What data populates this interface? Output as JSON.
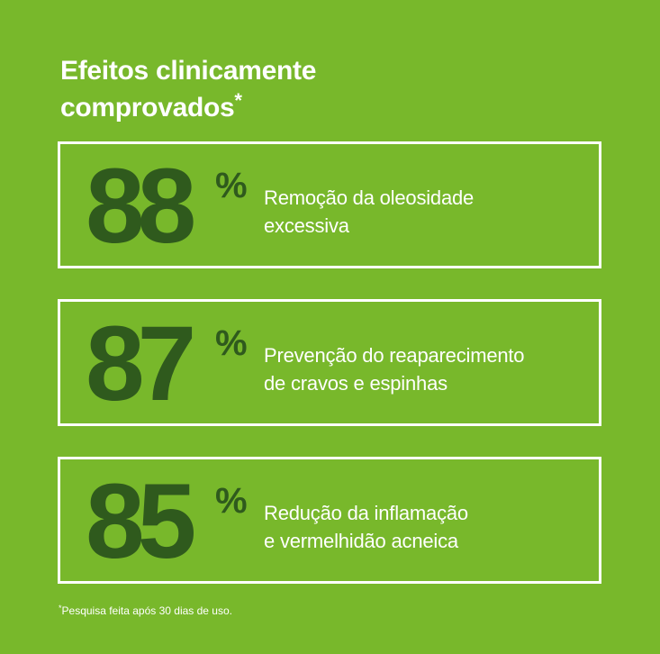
{
  "title": {
    "line1": "Efeitos clinicamente",
    "line2": "comprovados",
    "marker": "*"
  },
  "stats": [
    {
      "value": "88",
      "unit": "%",
      "line1": "Remoção da oleosidade",
      "line2": "excessiva"
    },
    {
      "value": "87",
      "unit": "%",
      "line1": "Prevenção do reaparecimento",
      "line2": "de cravos e espinhas"
    },
    {
      "value": "85",
      "unit": "%",
      "line1": "Redução da inflamação",
      "line2": "e vermelhidão acneica"
    }
  ],
  "footnote": {
    "marker": "*",
    "text": "Pesquisa feita após 30 dias de uso."
  },
  "colors": {
    "background": "#78b82b",
    "number": "#2f5a1d",
    "text": "#ffffff"
  }
}
